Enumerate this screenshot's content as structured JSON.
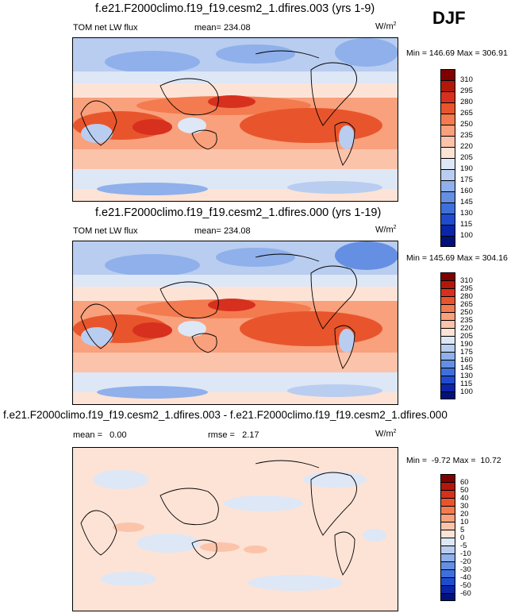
{
  "season": "DJF",
  "panels": [
    {
      "title": "f.e21.F2000climo.f19_f19.cesm2_1.dfires.003 (yrs 1-9)",
      "left_label": "TOM net LW flux",
      "center_label": "mean= 234.08",
      "units": "W/m",
      "units_sup": "2",
      "minmax": "Min = 146.69 Max = 306.91",
      "colorbar_labels": [
        "310",
        "295",
        "280",
        "265",
        "250",
        "235",
        "220",
        "205",
        "190",
        "175",
        "160",
        "145",
        "130",
        "115",
        "100"
      ]
    },
    {
      "title": "f.e21.F2000climo.f19_f19.cesm2_1.dfires.000 (yrs 1-19)",
      "left_label": "TOM net LW flux",
      "center_label": "mean= 234.08",
      "units": "W/m",
      "units_sup": "2",
      "minmax": "Min = 145.69 Max = 304.16",
      "colorbar_labels": [
        "310",
        "295",
        "280",
        "265",
        "250",
        "235",
        "220",
        "205",
        "190",
        "175",
        "160",
        "145",
        "130",
        "115",
        "100"
      ]
    },
    {
      "title": "f.e21.F2000climo.f19_f19.cesm2_1.dfires.003 - f.e21.F2000climo.f19_f19.cesm2_1.dfires.000",
      "left_label": "mean =   0.00",
      "center_label": "rmse =   2.17",
      "units": "W/m",
      "units_sup": "2",
      "minmax": "Min =  -9.72 Max =  10.72",
      "colorbar_labels": [
        "60",
        "50",
        "40",
        "30",
        "20",
        "10",
        "5",
        "0",
        "-5",
        "-10",
        "-20",
        "-30",
        "-40",
        "-50",
        "-60"
      ]
    }
  ],
  "colors": {
    "abs_scale": [
      "#7f0000",
      "#b2170b",
      "#d7301f",
      "#e8552c",
      "#f37b4f",
      "#f9a07c",
      "#fbc4aa",
      "#fde3d6",
      "#dde7f6",
      "#b9cdf0",
      "#8fb0ea",
      "#648fe3",
      "#3f6fdb",
      "#1f4ccf",
      "#0a25a8",
      "#00127a"
    ],
    "diff_scale": [
      "#7f0000",
      "#b2170b",
      "#d7301f",
      "#e8552c",
      "#f37b4f",
      "#f9a07c",
      "#fbc4aa",
      "#fde3d6",
      "#dde7f6",
      "#b9cdf0",
      "#8fb0ea",
      "#648fe3",
      "#3f6fdb",
      "#1f4ccf",
      "#0a25a8",
      "#00127a"
    ]
  },
  "chart_data": [
    {
      "type": "heatmap",
      "title": "f.e21.F2000climo.f19_f19.cesm2_1.dfires.003 (yrs 1-9)",
      "variable": "TOM net LW flux",
      "units": "W/m2",
      "mean": 234.08,
      "min": 146.69,
      "max": 306.91,
      "levels": [
        100,
        115,
        130,
        145,
        160,
        175,
        190,
        205,
        220,
        235,
        250,
        265,
        280,
        295,
        310
      ]
    },
    {
      "type": "heatmap",
      "title": "f.e21.F2000climo.f19_f19.cesm2_1.dfires.000 (yrs 1-19)",
      "variable": "TOM net LW flux",
      "units": "W/m2",
      "mean": 234.08,
      "min": 145.69,
      "max": 304.16,
      "levels": [
        100,
        115,
        130,
        145,
        160,
        175,
        190,
        205,
        220,
        235,
        250,
        265,
        280,
        295,
        310
      ]
    },
    {
      "type": "heatmap",
      "title": "f.e21.F2000climo.f19_f19.cesm2_1.dfires.003 - f.e21.F2000climo.f19_f19.cesm2_1.dfires.000",
      "units": "W/m2",
      "mean": 0.0,
      "rmse": 2.17,
      "min": -9.72,
      "max": 10.72,
      "levels": [
        -60,
        -50,
        -40,
        -30,
        -20,
        -10,
        -5,
        0,
        5,
        10,
        20,
        30,
        40,
        50,
        60
      ]
    }
  ]
}
